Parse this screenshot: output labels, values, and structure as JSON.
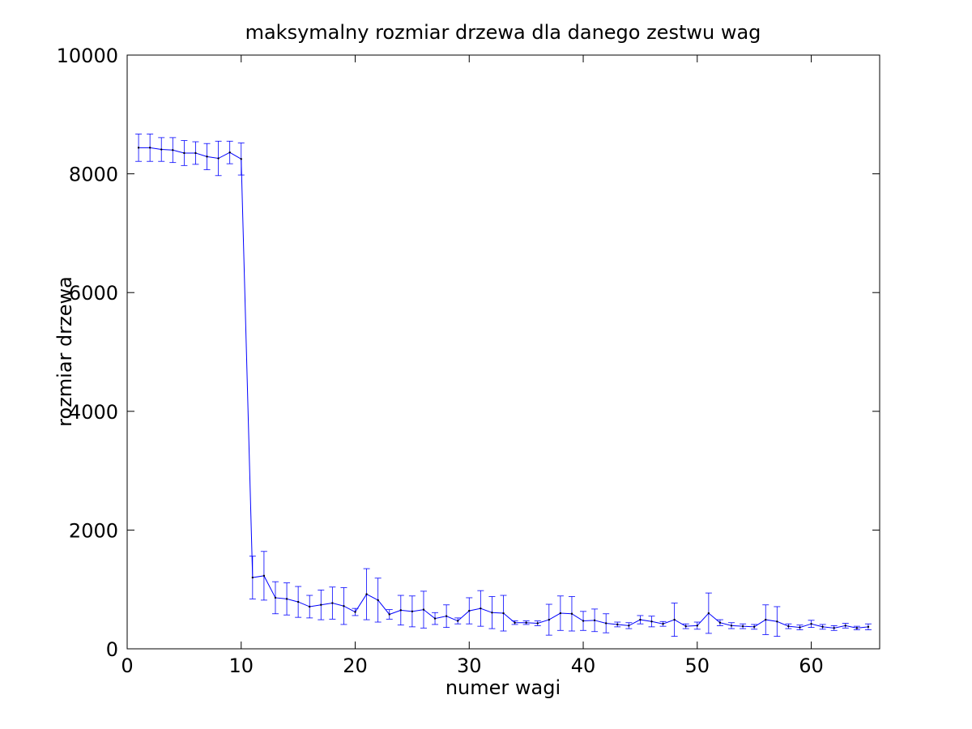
{
  "chart_data": {
    "type": "line",
    "title": "maksymalny rozmiar drzewa dla danego zestwu wag",
    "xlabel": "numer wagi",
    "ylabel": "rozmiar drzewa",
    "xlim": [
      0,
      66
    ],
    "ylim": [
      0,
      10000
    ],
    "x_ticks": [
      0,
      10,
      20,
      30,
      40,
      50,
      60
    ],
    "y_ticks": [
      0,
      2000,
      4000,
      6000,
      8000,
      10000
    ],
    "x_tick_labels": [
      "0",
      "10",
      "20",
      "30",
      "40",
      "50",
      "60"
    ],
    "y_tick_labels": [
      "0",
      "2000",
      "4000",
      "6000",
      "8000",
      "10000"
    ],
    "grid": false,
    "series": [
      {
        "color": "#0000ff",
        "x": [
          1,
          2,
          3,
          4,
          5,
          6,
          7,
          8,
          9,
          10,
          11,
          12,
          13,
          14,
          15,
          16,
          17,
          18,
          19,
          20,
          21,
          22,
          23,
          24,
          25,
          26,
          27,
          28,
          29,
          30,
          31,
          32,
          33,
          34,
          35,
          36,
          37,
          38,
          39,
          40,
          41,
          42,
          43,
          44,
          45,
          46,
          47,
          48,
          49,
          50,
          51,
          52,
          53,
          54,
          55,
          56,
          57,
          58,
          59,
          60,
          61,
          62,
          63,
          64,
          65
        ],
        "y": [
          8440,
          8440,
          8410,
          8400,
          8350,
          8350,
          8290,
          8260,
          8360,
          8250,
          1200,
          1230,
          860,
          840,
          790,
          710,
          740,
          770,
          720,
          620,
          920,
          820,
          580,
          650,
          630,
          660,
          510,
          550,
          470,
          640,
          680,
          610,
          600,
          440,
          440,
          430,
          490,
          600,
          590,
          470,
          480,
          430,
          410,
          390,
          490,
          460,
          420,
          490,
          380,
          390,
          600,
          440,
          390,
          380,
          370,
          490,
          460,
          380,
          360,
          420,
          370,
          350,
          390,
          350,
          370
        ],
        "err": [
          230,
          230,
          200,
          210,
          210,
          190,
          220,
          290,
          190,
          270,
          360,
          410,
          270,
          270,
          260,
          190,
          250,
          270,
          310,
          60,
          430,
          370,
          80,
          250,
          260,
          310,
          100,
          190,
          50,
          220,
          300,
          270,
          300,
          30,
          30,
          40,
          260,
          290,
          290,
          160,
          190,
          160,
          40,
          50,
          70,
          90,
          40,
          280,
          40,
          60,
          340,
          50,
          50,
          40,
          40,
          250,
          250,
          40,
          40,
          60,
          40,
          40,
          40,
          30,
          50
        ]
      }
    ]
  }
}
